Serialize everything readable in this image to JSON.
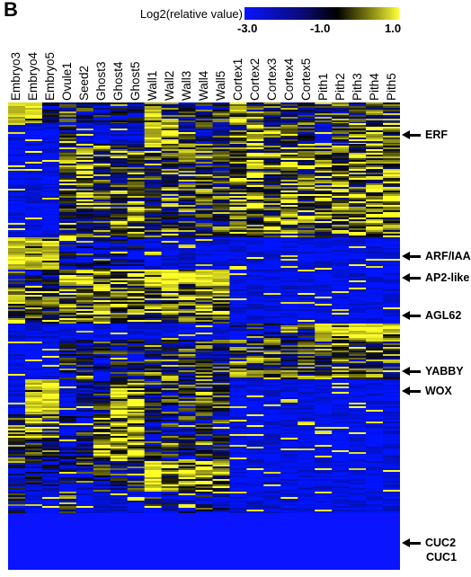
{
  "panel_label": "B",
  "colorbar": {
    "title": "Log2(relative value)",
    "ticks": [
      "-3.0",
      "-1.0",
      "1.0"
    ],
    "colors": [
      "#0a14ff",
      "#0a0a6a",
      "#000000",
      "#7a7a10",
      "#ffff3a"
    ]
  },
  "chart_data": {
    "type": "heatmap",
    "columns": [
      "Embryo3",
      "Embryo4",
      "Embryo5",
      "Ovule1",
      "Seed2",
      "Ghost3",
      "Ghost4",
      "Ghost5",
      "Wall1",
      "Wall2",
      "Wall3",
      "Wall4",
      "Wall5",
      "Cortex1",
      "Cortex2",
      "Cortex3",
      "Cortex4",
      "Cortex5",
      "Pith1",
      "Pith2",
      "Pith3",
      "Pith4",
      "Pith5"
    ],
    "value_range": [
      -3.0,
      1.0
    ],
    "clusters": [
      {
        "rows_fraction": 0.045,
        "levels": [
          0.9,
          0.9,
          0.3,
          0.5,
          0.3,
          0.3,
          0.3,
          0.3,
          0.9,
          0.5,
          0.4,
          0.4,
          0.4,
          0.6,
          0.6,
          0.5,
          0.5,
          0.5,
          0.5,
          0.5,
          0.5,
          0.5,
          0.5
        ]
      },
      {
        "rows_fraction": 0.045,
        "levels": [
          0.05,
          0.05,
          0.05,
          0.3,
          0.1,
          0.1,
          0.1,
          0.1,
          0.9,
          0.8,
          0.3,
          0.3,
          0.3,
          0.6,
          0.7,
          0.6,
          0.6,
          0.5,
          0.05,
          0.6,
          0.7,
          0.7,
          0.7
        ]
      },
      {
        "rows_fraction": 0.2,
        "levels": [
          0.05,
          0.05,
          0.05,
          0.55,
          0.6,
          0.6,
          0.6,
          0.6,
          0.55,
          0.55,
          0.5,
          0.5,
          0.5,
          0.7,
          0.7,
          0.65,
          0.65,
          0.6,
          0.65,
          0.7,
          0.7,
          0.7,
          0.7
        ]
      },
      {
        "rows_fraction": 0.07,
        "levels": [
          0.9,
          0.9,
          0.9,
          0.2,
          0.15,
          0.15,
          0.15,
          0.15,
          0.08,
          0.08,
          0.08,
          0.08,
          0.08,
          0.05,
          0.05,
          0.05,
          0.05,
          0.05,
          0.05,
          0.05,
          0.05,
          0.05,
          0.05
        ]
      },
      {
        "rows_fraction": 0.035,
        "levels": [
          0.3,
          0.3,
          0.3,
          0.8,
          0.85,
          0.85,
          0.8,
          0.8,
          0.95,
          0.95,
          0.95,
          0.95,
          0.95,
          0.05,
          0.05,
          0.05,
          0.05,
          0.05,
          0.05,
          0.05,
          0.05,
          0.05,
          0.05
        ]
      },
      {
        "rows_fraction": 0.08,
        "levels": [
          0.65,
          0.65,
          0.65,
          0.65,
          0.65,
          0.65,
          0.65,
          0.65,
          0.6,
          0.75,
          0.75,
          0.75,
          0.75,
          0.05,
          0.05,
          0.05,
          0.05,
          0.05,
          0.05,
          0.05,
          0.05,
          0.05,
          0.05
        ]
      },
      {
        "rows_fraction": 0.035,
        "levels": [
          0.05,
          0.05,
          0.05,
          0.05,
          0.05,
          0.05,
          0.05,
          0.05,
          0.05,
          0.05,
          0.05,
          0.05,
          0.05,
          0.2,
          0.3,
          0.35,
          0.35,
          0.4,
          0.9,
          0.95,
          0.95,
          0.95,
          0.9
        ]
      },
      {
        "rows_fraction": 0.085,
        "levels": [
          0.05,
          0.05,
          0.05,
          0.3,
          0.3,
          0.3,
          0.3,
          0.3,
          0.5,
          0.5,
          0.5,
          0.5,
          0.5,
          0.55,
          0.55,
          0.55,
          0.55,
          0.55,
          0.55,
          0.55,
          0.55,
          0.55,
          0.55
        ]
      },
      {
        "rows_fraction": 0.075,
        "levels": [
          0.05,
          0.9,
          0.9,
          0.05,
          0.2,
          0.3,
          0.85,
          0.85,
          0.3,
          0.45,
          0.45,
          0.55,
          0.55,
          0.05,
          0.05,
          0.05,
          0.05,
          0.05,
          0.05,
          0.05,
          0.05,
          0.05,
          0.05
        ]
      },
      {
        "rows_fraction": 0.1,
        "levels": [
          0.65,
          0.6,
          0.55,
          0.15,
          0.3,
          0.75,
          0.85,
          0.8,
          0.3,
          0.35,
          0.35,
          0.4,
          0.4,
          0.05,
          0.05,
          0.05,
          0.05,
          0.05,
          0.05,
          0.05,
          0.05,
          0.05,
          0.05
        ]
      },
      {
        "rows_fraction": 0.065,
        "levels": [
          0.2,
          0.2,
          0.2,
          0.15,
          0.3,
          0.3,
          0.35,
          0.35,
          0.95,
          0.8,
          0.8,
          0.8,
          0.7,
          0.05,
          0.05,
          0.05,
          0.05,
          0.05,
          0.05,
          0.05,
          0.05,
          0.05,
          0.05
        ]
      },
      {
        "rows_fraction": 0.045,
        "levels": [
          0.3,
          0.05,
          0.05,
          0.5,
          0.05,
          0.1,
          0.1,
          0.1,
          0.2,
          0.2,
          0.2,
          0.2,
          0.2,
          0.05,
          0.05,
          0.05,
          0.05,
          0.05,
          0.05,
          0.05,
          0.05,
          0.05,
          0.05
        ]
      }
    ],
    "row_annotations": [
      {
        "label": "ERF"
      },
      {
        "label": "ARF/IAA"
      },
      {
        "label": "AP2-like"
      },
      {
        "label": "AGL62"
      },
      {
        "label": "YABBY"
      },
      {
        "label": "WOX"
      },
      {
        "label": "CUC2"
      },
      {
        "label": "CUC1"
      }
    ]
  }
}
